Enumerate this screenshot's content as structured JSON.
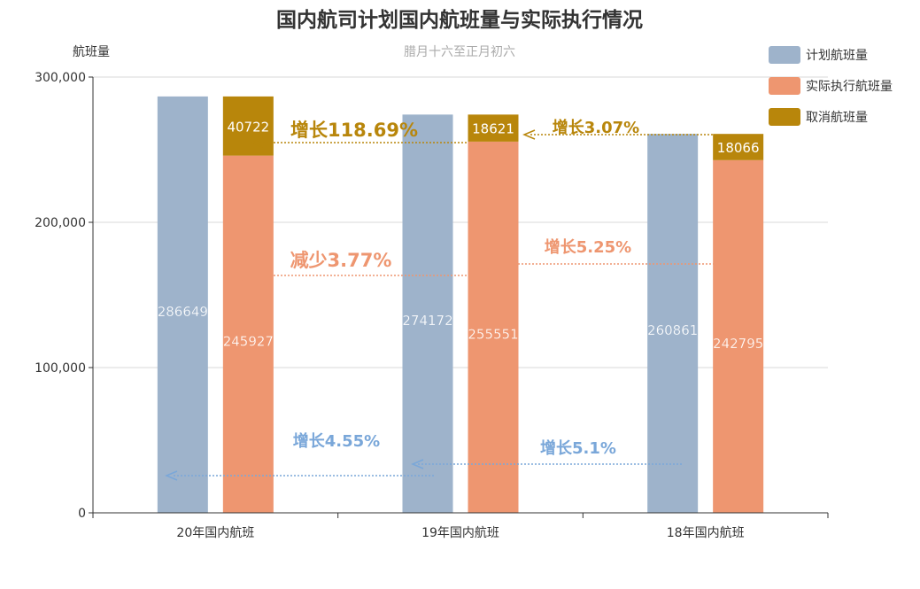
{
  "chart_data": {
    "type": "bar",
    "title": "国内航司计划国内航班量与实际执行情况",
    "subtitle": "腊月十六至正月初六",
    "ylabel": "航班量",
    "ylim": [
      0,
      300000
    ],
    "yticks": [
      "0",
      "100,000",
      "200,000",
      "300,000"
    ],
    "categories": [
      "20年国内航班",
      "19年国内航班",
      "18年国内航班"
    ],
    "series": [
      {
        "name": "计划航班量",
        "color": "#9eb3cb",
        "values": [
          286649,
          274172,
          260861
        ],
        "stack": "planned"
      },
      {
        "name": "实际执行航班量",
        "color": "#ee9670",
        "values": [
          245927,
          255551,
          242795
        ],
        "stack": "actual"
      },
      {
        "name": "取消航班量",
        "color": "#b8860b",
        "values": [
          40722,
          18621,
          18066
        ],
        "stack": "actual"
      }
    ],
    "legend_position": "top-right",
    "grid": true,
    "annotations": [
      {
        "text": "增长118.69%",
        "color": "#b8860b",
        "series": "取消航班量",
        "from": "19年国内航班",
        "to": "20年国内航班",
        "size": "large"
      },
      {
        "text": "增长3.07%",
        "color": "#b8860b",
        "series": "取消航班量",
        "from": "18年国内航班",
        "to": "19年国内航班",
        "size": "medium"
      },
      {
        "text": "减少3.77%",
        "color": "#ee9670",
        "series": "实际执行航班量",
        "from": "19年国内航班",
        "to": "20年国内航班",
        "size": "large"
      },
      {
        "text": "增长5.25%",
        "color": "#ee9670",
        "series": "实际执行航班量",
        "from": "18年国内航班",
        "to": "19年国内航班",
        "size": "medium"
      },
      {
        "text": "增长4.55%",
        "color": "#7aa7d9",
        "series": "计划航班量",
        "from": "19年国内航班",
        "to": "20年国内航班",
        "size": "medium"
      },
      {
        "text": "增长5.1%",
        "color": "#7aa7d9",
        "series": "计划航班量",
        "from": "18年国内航班",
        "to": "19年国内航班",
        "size": "medium"
      }
    ]
  }
}
